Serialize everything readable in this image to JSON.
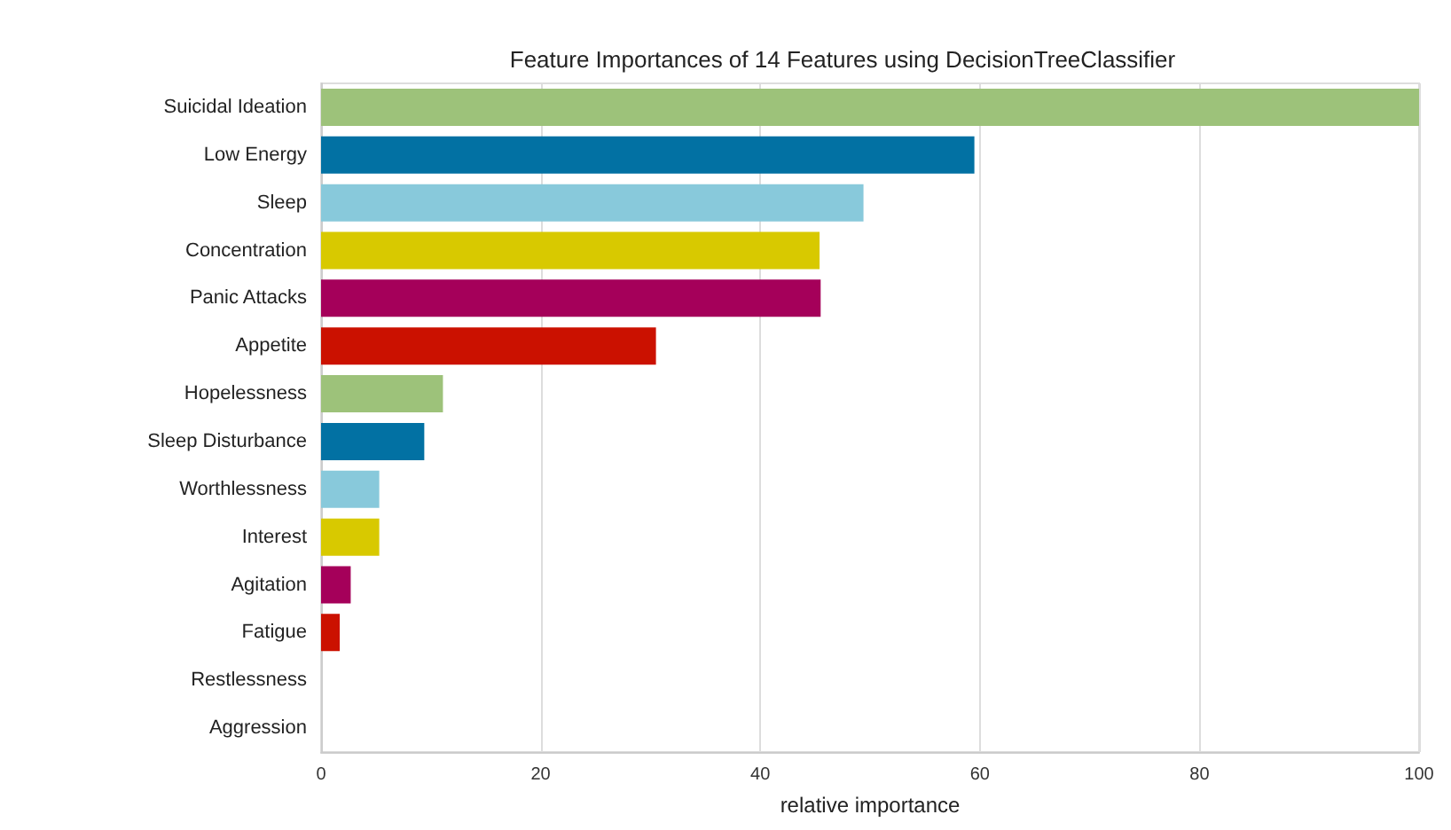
{
  "chart_data": {
    "type": "bar",
    "orientation": "horizontal",
    "title": "Feature Importances of 14 Features using DecisionTreeClassifier",
    "xlabel": "relative importance",
    "categories": [
      "Suicidal Ideation",
      "Low Energy",
      "Sleep",
      "Concentration",
      "Panic Attacks",
      "Appetite",
      "Hopelessness",
      "Sleep Disturbance",
      "Worthlessness",
      "Interest",
      "Agitation",
      "Fatigue",
      "Restlessness",
      "Aggression"
    ],
    "values": [
      100,
      59.5,
      49.4,
      45.4,
      45.5,
      30.5,
      11.1,
      9.4,
      5.3,
      5.3,
      2.7,
      1.7,
      0,
      0
    ],
    "colors": [
      "#9dc27a",
      "#0271a3",
      "#88c9db",
      "#d8c900",
      "#a5005a",
      "#cb1100",
      "#9dc27a",
      "#0271a3",
      "#88c9db",
      "#d8c900",
      "#a5005a",
      "#cb1100",
      "#9dc27a",
      "#0271a3"
    ],
    "xlim": [
      0,
      100
    ],
    "xticks": [
      0,
      20,
      40,
      60,
      80,
      100
    ],
    "grid": "x"
  }
}
